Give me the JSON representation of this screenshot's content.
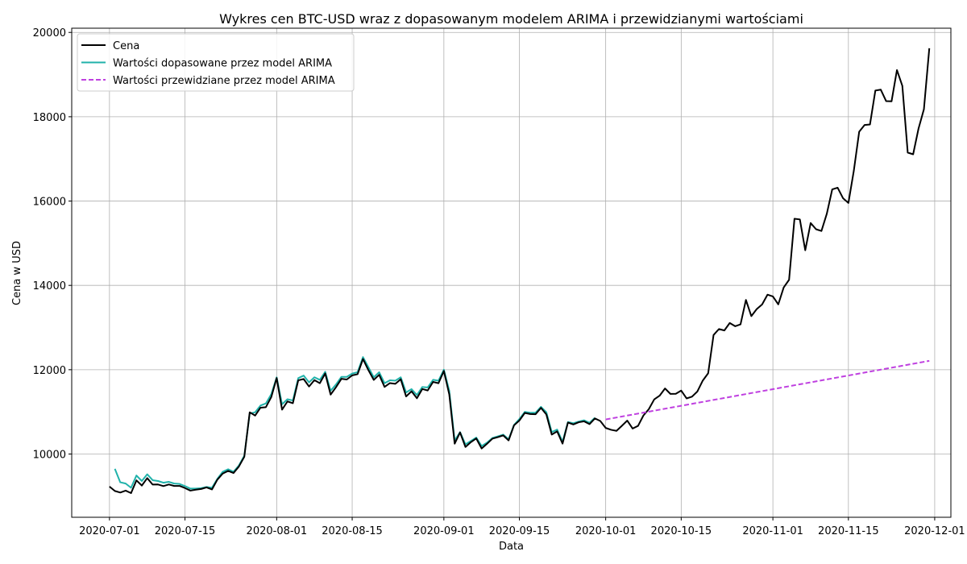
{
  "chart_data": {
    "type": "line",
    "title": "Wykres cen BTC-USD wraz z dopasowanym modelem ARIMA i przewidzianymi wartościami",
    "xlabel": "Data",
    "ylabel": "Cena w USD",
    "xlim": [
      "2020-06-24",
      "2020-12-04"
    ],
    "ylim": [
      8500,
      20100
    ],
    "x_ticks": [
      "2020-07-01",
      "2020-07-15",
      "2020-08-01",
      "2020-08-15",
      "2020-09-01",
      "2020-09-15",
      "2020-10-01",
      "2020-10-15",
      "2020-11-01",
      "2020-11-15",
      "2020-12-01"
    ],
    "y_ticks": [
      10000,
      12000,
      14000,
      16000,
      18000,
      20000
    ],
    "grid": true,
    "legend_position": "top-left",
    "series": [
      {
        "name": "Cena",
        "color": "#000000",
        "style": "solid",
        "start_date": "2020-07-01",
        "values": [
          9228,
          9123,
          9087,
          9132,
          9073,
          9375,
          9252,
          9428,
          9277,
          9278,
          9240,
          9277,
          9243,
          9244,
          9193,
          9132,
          9154,
          9171,
          9208,
          9160,
          9392,
          9537,
          9600,
          9550,
          9705,
          9935,
          10990,
          10912,
          11100,
          11112,
          11351,
          11803,
          11053,
          11247,
          11205,
          11748,
          11780,
          11601,
          11754,
          11680,
          11911,
          11410,
          11585,
          11784,
          11768,
          11866,
          11893,
          12254,
          11991,
          11758,
          11879,
          11592,
          11682,
          11665,
          11774,
          11366,
          11488,
          11323,
          11542,
          11507,
          11711,
          11680,
          11970,
          11414,
          10245,
          10512,
          10168,
          10281,
          10370,
          10131,
          10243,
          10364,
          10400,
          10442,
          10323,
          10680,
          10796,
          10975,
          10948,
          10944,
          11095,
          10938,
          10462,
          10538,
          10247,
          10746,
          10702,
          10754,
          10775,
          10709,
          10844,
          10784,
          10619,
          10575,
          10549,
          10669,
          10793,
          10604,
          10668,
          10915,
          11065,
          11296,
          11384,
          11555,
          11426,
          11429,
          11505,
          11319,
          11360,
          11484,
          11742,
          11916,
          12823,
          12965,
          12931,
          13108,
          13031,
          13076,
          13655,
          13271,
          13438,
          13547,
          13780,
          13737,
          13550,
          13950,
          14133,
          15580,
          15565,
          14833,
          15479,
          15332,
          15290,
          15701,
          16277,
          16317,
          16068,
          15955,
          16716,
          17645,
          17804,
          17817,
          18622,
          18642,
          18370,
          18365,
          19107,
          18732,
          17150,
          17109,
          17718,
          18178,
          19625
        ]
      },
      {
        "name": "Wartości dopasowane przez model ARIMA",
        "color": "#20b2aa",
        "style": "solid",
        "start_date": "2020-07-02",
        "values": [
          9650,
          9330,
          9300,
          9200,
          9490,
          9360,
          9520,
          9380,
          9360,
          9320,
          9340,
          9300,
          9290,
          9240,
          9180,
          9180,
          9190,
          9220,
          9200,
          9410,
          9580,
          9640,
          9580,
          9730,
          9960,
          10960,
          10990,
          11150,
          11200,
          11420,
          11820,
          11180,
          11300,
          11270,
          11800,
          11860,
          11700,
          11820,
          11760,
          11950,
          11500,
          11650,
          11830,
          11830,
          11910,
          11940,
          12300,
          12060,
          11820,
          11940,
          11680,
          11750,
          11740,
          11820,
          11460,
          11540,
          11400,
          11590,
          11580,
          11760,
          11740,
          12000,
          11500,
          10320,
          10520,
          10230,
          10310,
          10390,
          10190,
          10270,
          10380,
          10420,
          10460,
          10350,
          10690,
          10830,
          11000,
          10980,
          10980,
          11120,
          10990,
          10520,
          10580,
          10290,
          10760,
          10730,
          10770,
          10800,
          10740,
          10860
        ]
      },
      {
        "name": "Wartości przewidziane przez model ARIMA",
        "color": "#bf40e0",
        "style": "dashed",
        "start_date": "2020-10-01",
        "values": [
          10820,
          12210
        ],
        "end_date": "2020-11-30"
      }
    ]
  }
}
